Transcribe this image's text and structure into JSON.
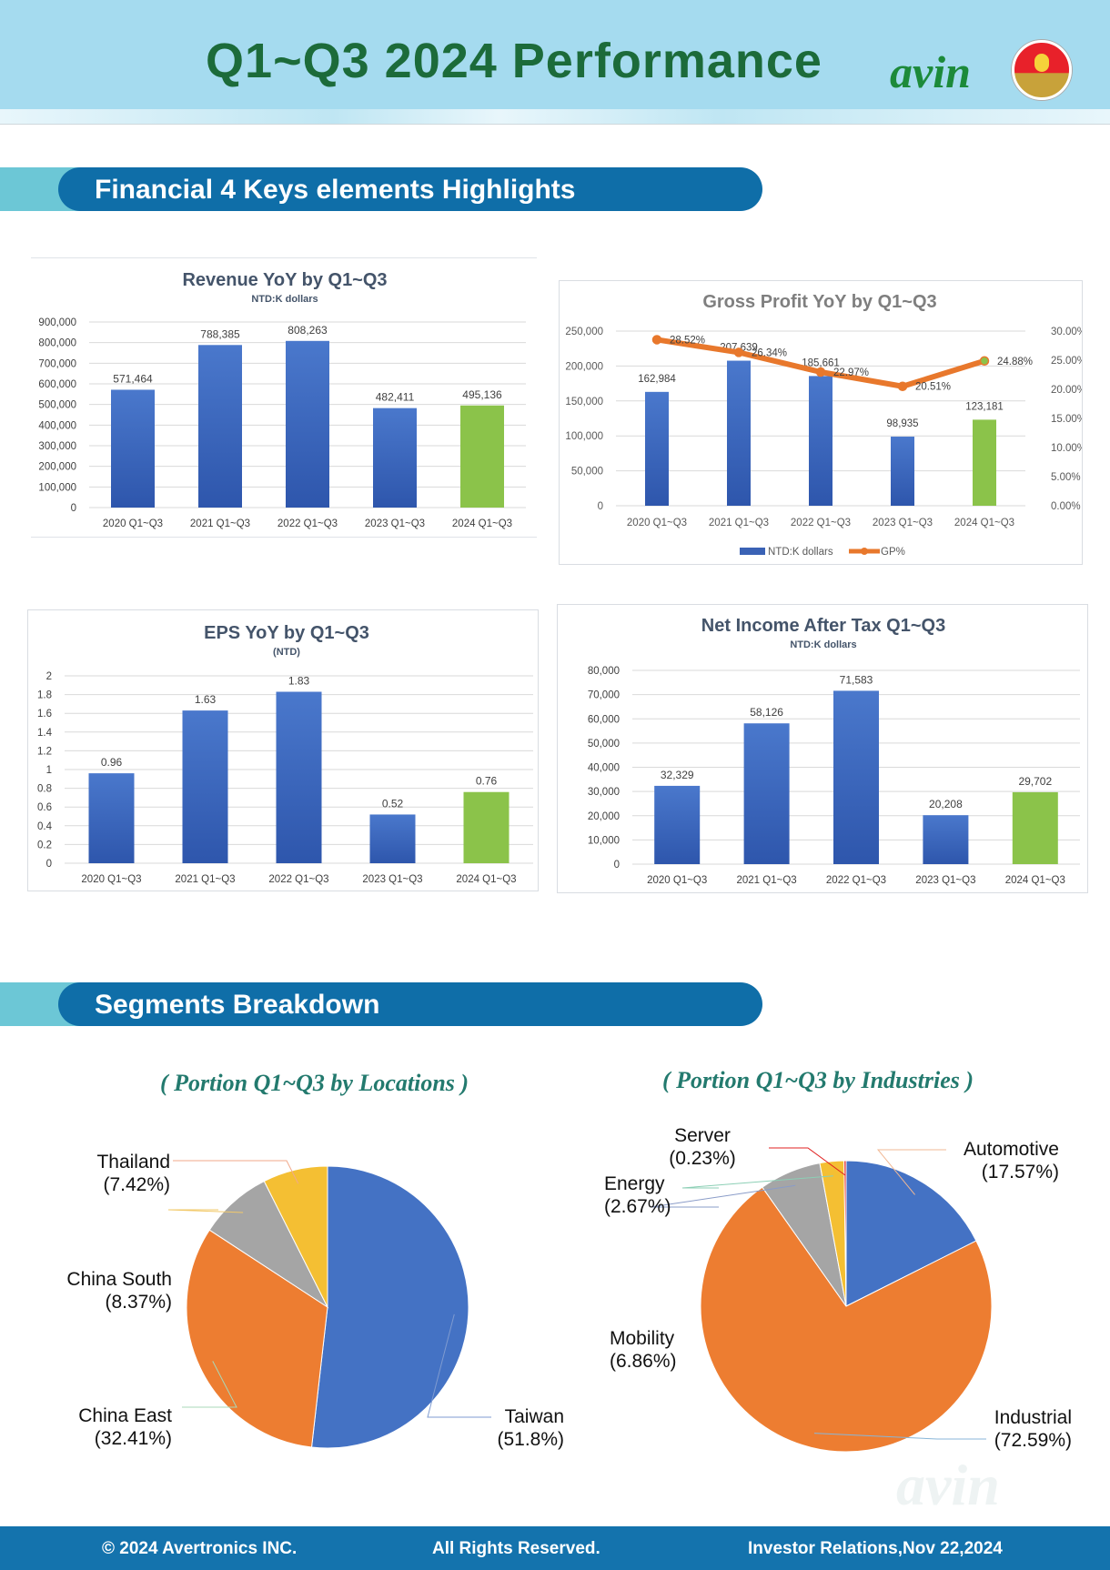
{
  "header": {
    "title": "Q1~Q3 2024 Performance",
    "logo_text": "avin"
  },
  "sections": {
    "highlights": "Financial 4 Keys elements Highlights",
    "segments": "Segments Breakdown"
  },
  "colors": {
    "bar_blue": "#3a62b5",
    "bar_green": "#8bc34a",
    "line_orange": "#e8782c",
    "pie_blue": "#4472c4",
    "pie_orange": "#ed7d31",
    "pie_gray": "#a5a5a5",
    "pie_yellow": "#f4bf33"
  },
  "chart_data": [
    {
      "id": "revenue",
      "type": "bar",
      "title": "Revenue YoY by Q1~Q3",
      "subtitle": "NTD:K dollars",
      "categories": [
        "2020 Q1~Q3",
        "2021 Q1~Q3",
        "2022 Q1~Q3",
        "2023 Q1~Q3",
        "2024 Q1~Q3"
      ],
      "values": [
        571464,
        788385,
        808263,
        482411,
        495136
      ],
      "value_labels": [
        "571,464",
        "788,385",
        "808,263",
        "482,411",
        "495,136"
      ],
      "ylim": [
        0,
        900000
      ],
      "yticks": [
        0,
        100000,
        200000,
        300000,
        400000,
        500000,
        600000,
        700000,
        800000,
        900000
      ],
      "ytick_labels": [
        "0",
        "100,000",
        "200,000",
        "300,000",
        "400,000",
        "500,000",
        "600,000",
        "700,000",
        "800,000",
        "900,000"
      ],
      "grid": true
    },
    {
      "id": "gross_profit",
      "type": "bar+line",
      "title": "Gross Profit YoY by Q1~Q3",
      "categories": [
        "2020 Q1~Q3",
        "2021 Q1~Q3",
        "2022 Q1~Q3",
        "2023 Q1~Q3",
        "2024 Q1~Q3"
      ],
      "series": [
        {
          "name": "NTD:K dollars",
          "type": "bar",
          "values": [
            162984,
            207639,
            185661,
            98935,
            123181
          ],
          "labels": [
            "162,984",
            "207,639",
            "185,661",
            "98,935",
            "123,181"
          ]
        },
        {
          "name": "GP%",
          "type": "line",
          "axis": "right",
          "values": [
            28.52,
            26.34,
            22.97,
            20.51,
            24.88
          ],
          "labels": [
            "28.52%",
            "26.34%",
            "22.97%",
            "20.51%",
            "24.88%"
          ]
        }
      ],
      "ylim": [
        0,
        250000
      ],
      "yticks": [
        0,
        50000,
        100000,
        150000,
        200000,
        250000
      ],
      "ytick_labels": [
        "0",
        "50,000",
        "100,000",
        "150,000",
        "200,000",
        "250,000"
      ],
      "y2lim": [
        0,
        30
      ],
      "y2ticks": [
        0,
        5,
        10,
        15,
        20,
        25,
        30
      ],
      "y2tick_labels": [
        "0.00%",
        "5.00%",
        "10.00%",
        "15.00%",
        "20.00%",
        "25.00%",
        "30.00%"
      ],
      "legend": "bottom",
      "grid": true
    },
    {
      "id": "eps",
      "type": "bar",
      "title": "EPS YoY by Q1~Q3",
      "subtitle": "(NTD)",
      "categories": [
        "2020 Q1~Q3",
        "2021 Q1~Q3",
        "2022 Q1~Q3",
        "2023 Q1~Q3",
        "2024 Q1~Q3"
      ],
      "values": [
        0.96,
        1.63,
        1.83,
        0.52,
        0.76
      ],
      "value_labels": [
        "0.96",
        "1.63",
        "1.83",
        "0.52",
        "0.76"
      ],
      "ylim": [
        0,
        2
      ],
      "yticks": [
        0,
        0.2,
        0.4,
        0.6,
        0.8,
        1,
        1.2,
        1.4,
        1.6,
        1.8,
        2
      ],
      "ytick_labels": [
        "0",
        "0.2",
        "0.4",
        "0.6",
        "0.8",
        "1",
        "1.2",
        "1.4",
        "1.6",
        "1.8",
        "2"
      ],
      "grid": true
    },
    {
      "id": "net_income",
      "type": "bar",
      "title": "Net Income After Tax Q1~Q3",
      "subtitle": "NTD:K dollars",
      "categories": [
        "2020 Q1~Q3",
        "2021 Q1~Q3",
        "2022 Q1~Q3",
        "2023 Q1~Q3",
        "2024 Q1~Q3"
      ],
      "values": [
        32329,
        58126,
        71583,
        20208,
        29702
      ],
      "value_labels": [
        "32,329",
        "58,126",
        "71,583",
        "20,208",
        "29,702"
      ],
      "ylim": [
        0,
        80000
      ],
      "yticks": [
        0,
        10000,
        20000,
        30000,
        40000,
        50000,
        60000,
        70000,
        80000
      ],
      "ytick_labels": [
        "0",
        "10,000",
        "20,000",
        "30,000",
        "40,000",
        "50,000",
        "60,000",
        "70,000",
        "80,000"
      ],
      "grid": true
    },
    {
      "id": "locations",
      "type": "pie",
      "title": "( Portion Q1~Q3 by Locations )",
      "slices": [
        {
          "name": "Taiwan",
          "pct": 51.8,
          "label": "(51.8%)",
          "color": "#4472c4"
        },
        {
          "name": "China East",
          "pct": 32.41,
          "label": "(32.41%)",
          "color": "#ed7d31"
        },
        {
          "name": "China South",
          "pct": 8.37,
          "label": "(8.37%)",
          "color": "#a5a5a5"
        },
        {
          "name": "Thailand",
          "pct": 7.42,
          "label": "(7.42%)",
          "color": "#f4bf33"
        }
      ]
    },
    {
      "id": "industries",
      "type": "pie",
      "title": "( Portion Q1~Q3 by Industries )",
      "slices": [
        {
          "name": "Automotive",
          "pct": 17.57,
          "label": "(17.57%)",
          "color": "#4472c4"
        },
        {
          "name": "Industrial",
          "pct": 72.59,
          "label": "(72.59%)",
          "color": "#ed7d31"
        },
        {
          "name": "Mobility",
          "pct": 6.86,
          "label": "(6.86%)",
          "color": "#a5a5a5"
        },
        {
          "name": "Energy",
          "pct": 2.67,
          "label": "(2.67%)",
          "color": "#f4bf33"
        },
        {
          "name": "Server",
          "pct": 0.23,
          "label": "(0.23%)",
          "color": "#e02020"
        }
      ]
    }
  ],
  "footer": {
    "copyright": "© 2024 Avertronics INC.",
    "rights": "All Rights Reserved.",
    "ir": "Investor Relations,Nov 22,2024"
  },
  "watermark": "avin"
}
